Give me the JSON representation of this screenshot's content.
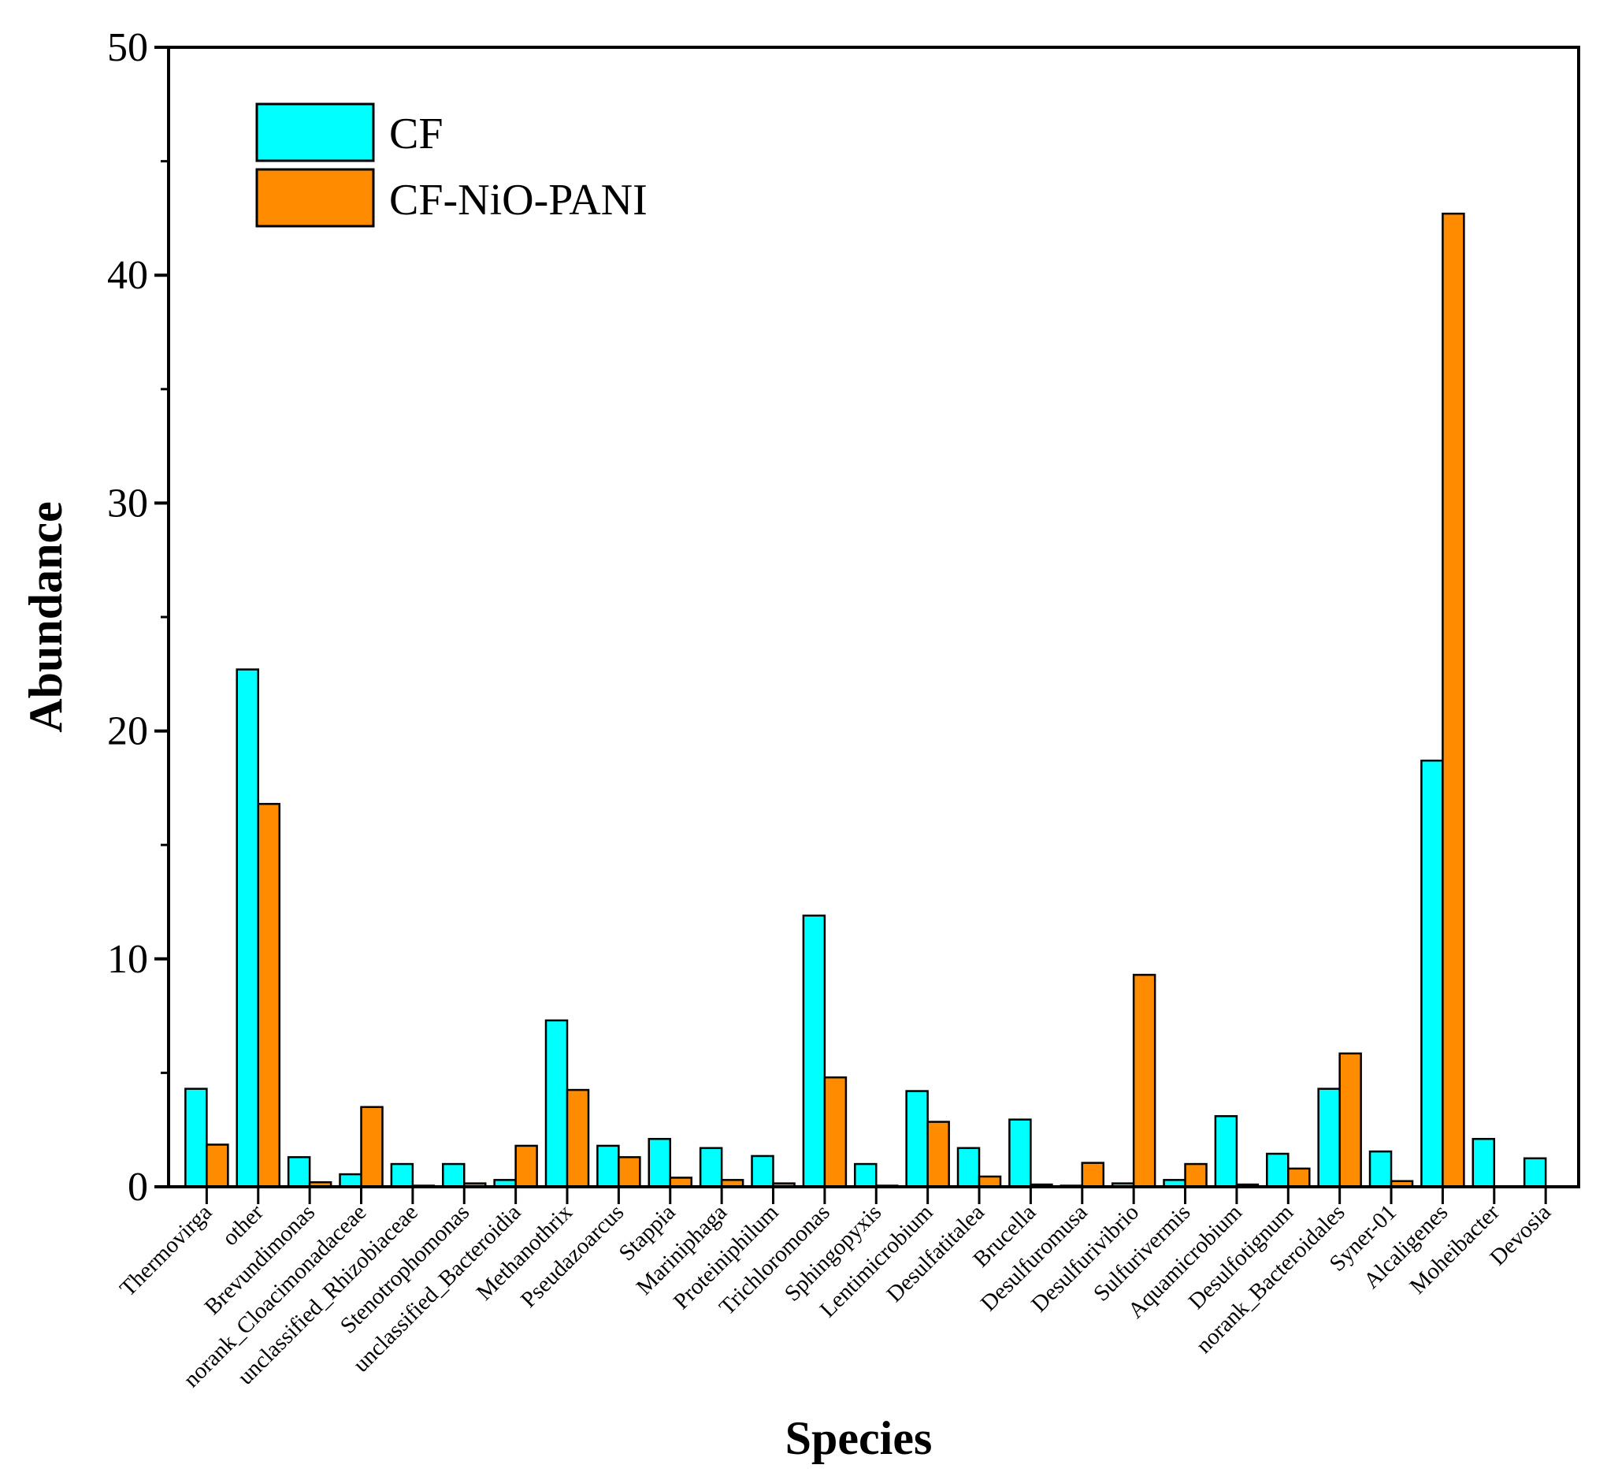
{
  "chart_data": {
    "type": "bar",
    "title": "",
    "xlabel": "Species",
    "ylabel": "Abundance",
    "ylim": [
      0,
      50
    ],
    "yticks": [
      "0",
      "10",
      "20",
      "30",
      "40",
      "50"
    ],
    "grid": false,
    "legend_position": "top-left",
    "categories": [
      "Thermovirga",
      "other",
      "Brevundimonas",
      "norank_Cloacimonadaceae",
      "unclassified_Rhizobiaceae",
      "Stenotrophomonas",
      "unclassified_Bacteroidia",
      "Methanothrix",
      "Pseudazoarcus",
      "Stappia",
      "Mariniphaga",
      "Proteiniphilum",
      "Trichloromonas",
      "Sphingopyxis",
      "Lentimicrobium",
      "Desulfatitalea",
      "Brucella",
      "Desulfuromusa",
      "Desulfurivibrio",
      "Sulfurivermis",
      "Aquamicrobium",
      "Desulfotignum",
      "norank_Bacteroidales",
      "Syner-01",
      "Alcaligenes",
      "Moheibacter",
      "Devosia"
    ],
    "series": [
      {
        "name": "CF",
        "color": "#00FFFF",
        "values": [
          4.3,
          22.7,
          1.3,
          0.55,
          1.0,
          1.0,
          0.3,
          7.3,
          1.8,
          2.1,
          1.7,
          1.35,
          11.9,
          1.0,
          4.2,
          1.7,
          2.95,
          0.05,
          0.15,
          0.3,
          3.1,
          1.45,
          4.3,
          1.55,
          18.7,
          2.1,
          1.25
        ]
      },
      {
        "name": "CF-NiO-PANI",
        "color": "#FF8C00",
        "values": [
          1.85,
          16.8,
          0.2,
          3.5,
          0.05,
          0.15,
          1.8,
          4.25,
          1.3,
          0.4,
          0.3,
          0.15,
          4.8,
          0.05,
          2.85,
          0.45,
          0.1,
          1.05,
          9.3,
          1.0,
          0.1,
          0.8,
          5.85,
          0.25,
          42.7,
          0.0,
          0.0
        ]
      }
    ]
  }
}
